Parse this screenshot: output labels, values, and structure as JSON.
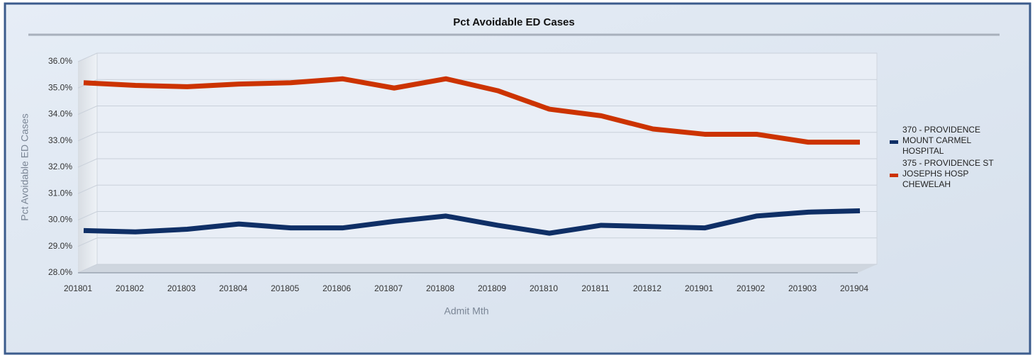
{
  "chart_data": {
    "type": "line",
    "title": "Pct Avoidable ED Cases",
    "x_label": "Admit Mth",
    "y_label": "Pct Avoidable ED Cases",
    "categories": [
      "201801",
      "201802",
      "201803",
      "201804",
      "201805",
      "201806",
      "201807",
      "201808",
      "201809",
      "201810",
      "201811",
      "201812",
      "201901",
      "201902",
      "201903",
      "201904"
    ],
    "series": [
      {
        "name": "370 - PROVIDENCE MOUNT CARMEL HOSPITAL",
        "color": "#0f2f66",
        "values": [
          29.6,
          29.55,
          29.65,
          29.85,
          29.7,
          29.7,
          29.95,
          30.15,
          29.8,
          29.5,
          29.8,
          29.75,
          29.7,
          30.15,
          30.3,
          30.35
        ]
      },
      {
        "name": "375 - PROVIDENCE ST JOSEPHS HOSP CHEWELAH",
        "color": "#cc3300",
        "values": [
          35.2,
          35.1,
          35.05,
          35.15,
          35.2,
          35.35,
          35.0,
          35.35,
          34.9,
          34.2,
          33.95,
          33.45,
          33.25,
          33.25,
          32.95,
          32.95
        ]
      }
    ],
    "ylim": [
      28,
      36
    ],
    "yticks": [
      {
        "value": 28,
        "label": "28.0%"
      },
      {
        "value": 29,
        "label": "29.0%"
      },
      {
        "value": 30,
        "label": "30.0%"
      },
      {
        "value": 31,
        "label": "31.0%"
      },
      {
        "value": 32,
        "label": "32.0%"
      },
      {
        "value": 33,
        "label": "33.0%"
      },
      {
        "value": 34,
        "label": "34.0%"
      },
      {
        "value": 35,
        "label": "35.0%"
      },
      {
        "value": 36,
        "label": "36.0%"
      }
    ],
    "grid": true
  }
}
